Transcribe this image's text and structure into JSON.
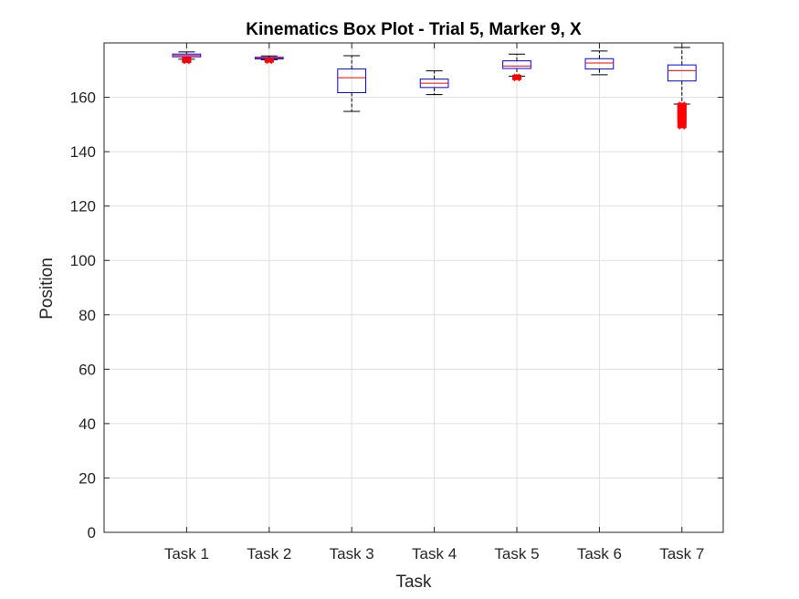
{
  "chart_data": {
    "type": "box",
    "title": "Kinematics Box Plot - Trial 5, Marker 9, X",
    "xlabel": "Task",
    "ylabel": "Position",
    "ylim": [
      0,
      180
    ],
    "yticks": [
      0,
      20,
      40,
      60,
      80,
      100,
      120,
      140,
      160
    ],
    "grid": true,
    "categories": [
      "Task 1",
      "Task 2",
      "Task 3",
      "Task 4",
      "Task 5",
      "Task 6",
      "Task 7"
    ],
    "boxes": [
      {
        "category": "Task 1",
        "whisker_low": 174.0,
        "q1": 174.9,
        "median": 175.4,
        "q3": 175.9,
        "whisker_high": 176.7,
        "outliers": [
          173.3,
          173.6,
          173.9,
          174.1
        ]
      },
      {
        "category": "Task 2",
        "whisker_low": 173.8,
        "q1": 174.1,
        "median": 174.4,
        "q3": 174.7,
        "whisker_high": 175.2,
        "outliers": [
          173.4,
          173.6
        ]
      },
      {
        "category": "Task 3",
        "whisker_low": 154.8,
        "q1": 161.7,
        "median": 167.2,
        "q3": 170.4,
        "whisker_high": 175.3,
        "outliers": []
      },
      {
        "category": "Task 4",
        "whisker_low": 161.0,
        "q1": 163.6,
        "median": 165.2,
        "q3": 166.7,
        "whisker_high": 169.7,
        "outliers": []
      },
      {
        "category": "Task 5",
        "whisker_low": 167.8,
        "q1": 170.6,
        "median": 171.5,
        "q3": 173.4,
        "whisker_high": 175.9,
        "outliers": [
          167.0,
          167.3,
          167.6
        ]
      },
      {
        "category": "Task 6",
        "whisker_low": 168.3,
        "q1": 170.4,
        "median": 172.6,
        "q3": 174.2,
        "whisker_high": 177.0,
        "outliers": []
      },
      {
        "category": "Task 7",
        "whisker_low": 157.5,
        "q1": 166.0,
        "median": 169.8,
        "q3": 171.9,
        "whisker_high": 178.3,
        "outliers": [
          149.3,
          150.5,
          151.2,
          152.0,
          152.6,
          153.2,
          153.8,
          154.4,
          155.0,
          155.6,
          156.2,
          156.8,
          157.3
        ]
      }
    ],
    "colors": {
      "box": "#0000ff",
      "median": "#ff0000",
      "whisker": "#000000",
      "outlier": "#ff0000",
      "grid": "#dfdfdf",
      "axis": "#262626"
    }
  }
}
